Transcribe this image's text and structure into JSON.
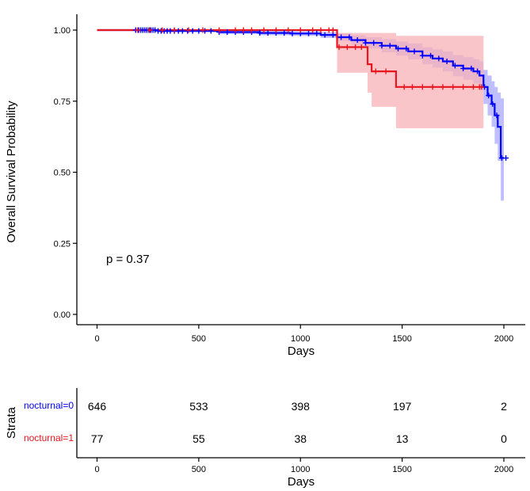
{
  "chart_data": {
    "type": "line",
    "subtype": "kaplan-meier",
    "xlabel": "Days",
    "ylabel": "Overall Survival Probability",
    "xlim": [
      -100,
      2100
    ],
    "ylim": [
      0,
      1
    ],
    "x_ticks": [
      0,
      500,
      1000,
      1500,
      2000
    ],
    "y_ticks": [
      0.0,
      0.25,
      0.5,
      0.75,
      1.0
    ],
    "x_tick_labels": [
      "0",
      "500",
      "1000",
      "1500",
      "2000"
    ],
    "y_tick_labels": [
      "0.00",
      "0.25",
      "0.50",
      "0.75",
      "1.00"
    ],
    "grid": false,
    "pvalue_text": "p = 0.37",
    "series": [
      {
        "name": "nocturnal=0",
        "color": "#0000ff",
        "ci_color": "#aaaaff",
        "x": [
          0,
          300,
          600,
          800,
          950,
          1100,
          1180,
          1250,
          1320,
          1400,
          1470,
          1530,
          1600,
          1650,
          1700,
          1750,
          1800,
          1850,
          1880,
          1900,
          1920,
          1940,
          1955,
          1970,
          1985,
          2000
        ],
        "y": [
          1.0,
          0.997,
          0.993,
          0.99,
          0.988,
          0.983,
          0.975,
          0.965,
          0.955,
          0.945,
          0.935,
          0.925,
          0.91,
          0.9,
          0.89,
          0.875,
          0.865,
          0.855,
          0.84,
          0.8,
          0.77,
          0.74,
          0.7,
          0.66,
          0.55,
          0.55
        ],
        "ci_upper": [
          1.0,
          1.0,
          1.0,
          0.998,
          0.996,
          0.993,
          0.988,
          0.982,
          0.975,
          0.968,
          0.96,
          0.953,
          0.94,
          0.932,
          0.925,
          0.912,
          0.905,
          0.898,
          0.89,
          0.86,
          0.84,
          0.82,
          0.8,
          0.78,
          0.76,
          0.76
        ],
        "ci_lower": [
          1.0,
          0.994,
          0.986,
          0.982,
          0.98,
          0.973,
          0.962,
          0.948,
          0.935,
          0.922,
          0.91,
          0.897,
          0.88,
          0.868,
          0.855,
          0.838,
          0.825,
          0.812,
          0.79,
          0.74,
          0.7,
          0.66,
          0.6,
          0.54,
          0.4,
          0.4
        ],
        "censor_x": [
          190,
          205,
          215,
          225,
          235,
          245,
          255,
          265,
          275,
          285,
          300,
          315,
          330,
          345,
          360,
          380,
          400,
          420,
          445,
          470,
          500,
          530,
          560,
          600,
          640,
          680,
          720,
          760,
          800,
          840,
          880,
          920,
          960,
          1000,
          1040,
          1080,
          1120,
          1160,
          1200,
          1240,
          1280,
          1320,
          1360,
          1400,
          1440,
          1480,
          1520,
          1560,
          1600,
          1640,
          1680,
          1720,
          1760,
          1800,
          1840,
          1870,
          1905,
          1925,
          1945,
          1965,
          1990,
          2010
        ]
      },
      {
        "name": "nocturnal=1",
        "color": "#e8161f",
        "ci_color": "#f8b1b5",
        "x": [
          0,
          1180,
          1330,
          1350,
          1470,
          1900
        ],
        "y": [
          1.0,
          0.94,
          0.88,
          0.855,
          0.8,
          0.8
        ],
        "ci_upper": [
          1.0,
          0.99,
          0.99,
          0.99,
          0.98,
          0.98
        ],
        "ci_lower": [
          1.0,
          0.85,
          0.78,
          0.73,
          0.655,
          0.655
        ],
        "censor_x": [
          200,
          260,
          320,
          380,
          450,
          520,
          600,
          680,
          720,
          760,
          820,
          880,
          940,
          1000,
          1060,
          1100,
          1140,
          1160,
          1190,
          1230,
          1270,
          1300,
          1370,
          1420,
          1510,
          1550,
          1600,
          1650,
          1700,
          1750,
          1800,
          1850,
          1880,
          1890
        ]
      }
    ],
    "risk_table": {
      "title": "Strata",
      "xlabel": "Days",
      "times": [
        0,
        500,
        1000,
        1500,
        2000
      ],
      "tick_labels": [
        "0",
        "500",
        "1000",
        "1500",
        "2000"
      ],
      "rows": [
        {
          "label": "nocturnal=0",
          "color": "#0000ff",
          "values": [
            "646",
            "533",
            "398",
            "197",
            "2"
          ]
        },
        {
          "label": "nocturnal=1",
          "color": "#e8161f",
          "values": [
            "77",
            "55",
            "38",
            "13",
            "0"
          ]
        }
      ]
    }
  }
}
